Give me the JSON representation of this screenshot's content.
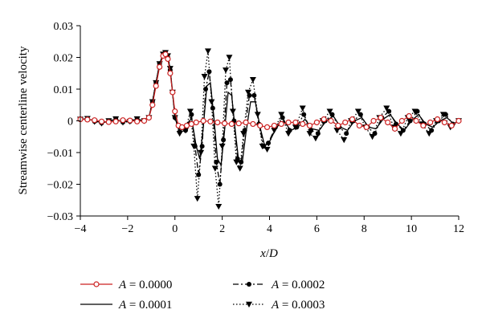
{
  "chart_data": {
    "type": "line",
    "xlabel": "x/D",
    "ylabel": "Streamwise centerline velocity",
    "xlim": [
      -4,
      12
    ],
    "ylim": [
      -0.03,
      0.03
    ],
    "x_ticks": [
      -4,
      -2,
      0,
      2,
      4,
      6,
      8,
      10,
      12
    ],
    "y_ticks": [
      0.03,
      0.02,
      0.01,
      0,
      -0.01,
      -0.02,
      -0.03
    ],
    "x_tick_labels": [
      "−4",
      "−2",
      "0",
      "2",
      "4",
      "6",
      "8",
      "10",
      "12"
    ],
    "y_tick_labels": [
      "0.03",
      "0.02",
      "0.01",
      "0",
      "−0.01",
      "−0.02",
      "−0.03"
    ],
    "grid": false,
    "legend_position": "bottom",
    "series": [
      {
        "name": "A = 0.0000",
        "label_var": "A",
        "label_value": " = 0.0000",
        "color": "#cc2222",
        "style": "solid",
        "marker": "open-circle",
        "points": [
          [
            -4,
            0.0005
          ],
          [
            -3.7,
            0.0004
          ],
          [
            -3.4,
            0.0002
          ],
          [
            -3.1,
            -0.0002
          ],
          [
            -2.8,
            -0.0004
          ],
          [
            -2.5,
            -0.0002
          ],
          [
            -2.2,
            0.0002
          ],
          [
            -1.9,
            0.0001
          ],
          [
            -1.6,
            -0.0002
          ],
          [
            -1.3,
            0.0
          ],
          [
            -1.1,
            0.001
          ],
          [
            -0.95,
            0.005
          ],
          [
            -0.8,
            0.011
          ],
          [
            -0.65,
            0.017
          ],
          [
            -0.5,
            0.0205
          ],
          [
            -0.4,
            0.021
          ],
          [
            -0.3,
            0.0195
          ],
          [
            -0.2,
            0.015
          ],
          [
            -0.1,
            0.009
          ],
          [
            0.0,
            0.003
          ],
          [
            0.15,
            -0.0015
          ],
          [
            0.3,
            -0.002
          ],
          [
            0.5,
            -0.0015
          ],
          [
            0.7,
            -0.001
          ],
          [
            0.9,
            -0.0005
          ],
          [
            1.2,
            0.0
          ],
          [
            1.5,
            -0.0002
          ],
          [
            1.8,
            -0.0005
          ],
          [
            2.1,
            -0.0008
          ],
          [
            2.4,
            -0.001
          ],
          [
            2.7,
            -0.0008
          ],
          [
            3.0,
            -0.0005
          ],
          [
            3.3,
            -0.001
          ],
          [
            3.6,
            -0.0015
          ],
          [
            3.9,
            -0.002
          ],
          [
            4.2,
            -0.0015
          ],
          [
            4.5,
            -0.001
          ],
          [
            4.8,
            -0.0005
          ],
          [
            5.1,
            -0.0005
          ],
          [
            5.4,
            -0.001
          ],
          [
            5.7,
            -0.0015
          ],
          [
            6.0,
            -0.0005
          ],
          [
            6.3,
            0.0005
          ],
          [
            6.6,
            0.0
          ],
          [
            6.9,
            -0.0015
          ],
          [
            7.2,
            -0.0005
          ],
          [
            7.5,
            0.0005
          ],
          [
            7.8,
            -0.0015
          ],
          [
            8.1,
            -0.002
          ],
          [
            8.4,
            0.0
          ],
          [
            8.7,
            0.001
          ],
          [
            9.0,
            -0.0005
          ],
          [
            9.3,
            -0.0025
          ],
          [
            9.6,
            0.0
          ],
          [
            9.9,
            0.0015
          ],
          [
            10.2,
            0.0
          ],
          [
            10.5,
            -0.0015
          ],
          [
            10.8,
            -0.0005
          ],
          [
            11.1,
            0.0005
          ],
          [
            11.4,
            -0.0005
          ],
          [
            11.7,
            -0.0015
          ],
          [
            12,
            0.0
          ]
        ]
      },
      {
        "name": "A = 0.0001",
        "label_var": "A",
        "label_value": " = 0.0001",
        "color": "#000000",
        "style": "solid",
        "marker": "none",
        "points": [
          [
            -4,
            0.0005
          ],
          [
            -3.7,
            0.0006
          ],
          [
            -3.4,
            0.0
          ],
          [
            -3.1,
            -0.0006
          ],
          [
            -2.8,
            -0.0002
          ],
          [
            -2.5,
            0.0004
          ],
          [
            -2.2,
            -0.0004
          ],
          [
            -1.9,
            0.0
          ],
          [
            -1.6,
            0.0005
          ],
          [
            -1.3,
            0.0
          ],
          [
            -1.1,
            0.001
          ],
          [
            -0.95,
            0.006
          ],
          [
            -0.8,
            0.012
          ],
          [
            -0.65,
            0.018
          ],
          [
            -0.5,
            0.021
          ],
          [
            -0.4,
            0.0215
          ],
          [
            -0.3,
            0.0205
          ],
          [
            -0.2,
            0.016
          ],
          [
            -0.1,
            0.009
          ],
          [
            0.0,
            0.001
          ],
          [
            0.2,
            -0.003
          ],
          [
            0.45,
            -0.0025
          ],
          [
            0.7,
            0.001
          ],
          [
            0.9,
            -0.008
          ],
          [
            1.05,
            -0.012
          ],
          [
            1.2,
            -0.002
          ],
          [
            1.35,
            0.011
          ],
          [
            1.5,
            0.012
          ],
          [
            1.65,
            0.001
          ],
          [
            1.8,
            -0.012
          ],
          [
            1.95,
            -0.014
          ],
          [
            2.1,
            -0.003
          ],
          [
            2.25,
            0.009
          ],
          [
            2.4,
            0.008
          ],
          [
            2.55,
            -0.003
          ],
          [
            2.7,
            -0.013
          ],
          [
            2.85,
            -0.013
          ],
          [
            3.0,
            -0.004
          ],
          [
            3.2,
            0.006
          ],
          [
            3.4,
            0.006
          ],
          [
            3.6,
            -0.002
          ],
          [
            3.8,
            -0.008
          ],
          [
            4.0,
            -0.0065
          ],
          [
            4.3,
            -0.002
          ],
          [
            4.6,
            0.0
          ],
          [
            4.9,
            -0.003
          ],
          [
            5.2,
            -0.002
          ],
          [
            5.5,
            0.0005
          ],
          [
            5.8,
            -0.0025
          ],
          [
            6.1,
            -0.003
          ],
          [
            6.4,
            0.0
          ],
          [
            6.7,
            0.0015
          ],
          [
            7.0,
            -0.002
          ],
          [
            7.3,
            -0.003
          ],
          [
            7.6,
            0.0
          ],
          [
            7.9,
            0.001
          ],
          [
            8.2,
            -0.002
          ],
          [
            8.5,
            -0.0025
          ],
          [
            8.8,
            0.0005
          ],
          [
            9.1,
            0.002
          ],
          [
            9.4,
            -0.001
          ],
          [
            9.7,
            -0.003
          ],
          [
            10.0,
            0.0
          ],
          [
            10.3,
            0.002
          ],
          [
            10.6,
            -0.001
          ],
          [
            10.9,
            -0.002
          ],
          [
            11.2,
            0.0
          ],
          [
            11.5,
            0.001
          ],
          [
            11.8,
            -0.001
          ],
          [
            12,
            0.0
          ]
        ]
      },
      {
        "name": "A = 0.0002",
        "label_var": "A",
        "label_value": " = 0.0002",
        "color": "#000000",
        "style": "dashdot",
        "marker": "filled-circle",
        "points": [
          [
            -4,
            0.0005
          ],
          [
            -3.7,
            0.0006
          ],
          [
            -3.4,
            -0.0002
          ],
          [
            -3.1,
            -0.0007
          ],
          [
            -2.8,
            0.0
          ],
          [
            -2.5,
            0.0005
          ],
          [
            -2.2,
            -0.0004
          ],
          [
            -1.9,
            -0.0002
          ],
          [
            -1.6,
            0.0005
          ],
          [
            -1.3,
            0.0
          ],
          [
            -1.1,
            0.001
          ],
          [
            -0.95,
            0.006
          ],
          [
            -0.8,
            0.012
          ],
          [
            -0.65,
            0.018
          ],
          [
            -0.5,
            0.0205
          ],
          [
            -0.4,
            0.021
          ],
          [
            -0.3,
            0.02
          ],
          [
            -0.2,
            0.016
          ],
          [
            -0.1,
            0.009
          ],
          [
            0.0,
            0.001
          ],
          [
            0.2,
            -0.0035
          ],
          [
            0.45,
            -0.003
          ],
          [
            0.7,
            0.002
          ],
          [
            0.85,
            -0.008
          ],
          [
            1.0,
            -0.017
          ],
          [
            1.15,
            -0.008
          ],
          [
            1.3,
            0.01
          ],
          [
            1.45,
            0.0155
          ],
          [
            1.6,
            0.004
          ],
          [
            1.75,
            -0.013
          ],
          [
            1.9,
            -0.02
          ],
          [
            2.05,
            -0.006
          ],
          [
            2.2,
            0.012
          ],
          [
            2.35,
            0.013
          ],
          [
            2.5,
            0.0
          ],
          [
            2.65,
            -0.012
          ],
          [
            2.8,
            -0.013
          ],
          [
            2.95,
            -0.003
          ],
          [
            3.15,
            0.008
          ],
          [
            3.35,
            0.008
          ],
          [
            3.55,
            -0.001
          ],
          [
            3.75,
            -0.008
          ],
          [
            3.95,
            -0.007
          ],
          [
            4.25,
            -0.002
          ],
          [
            4.55,
            0.001
          ],
          [
            4.85,
            -0.003
          ],
          [
            5.15,
            -0.002
          ],
          [
            5.45,
            0.002
          ],
          [
            5.75,
            -0.003
          ],
          [
            6.05,
            -0.004
          ],
          [
            6.35,
            0.0
          ],
          [
            6.65,
            0.002
          ],
          [
            6.95,
            -0.002
          ],
          [
            7.25,
            -0.004
          ],
          [
            7.55,
            0.0
          ],
          [
            7.85,
            0.002
          ],
          [
            8.15,
            -0.002
          ],
          [
            8.45,
            -0.004
          ],
          [
            8.75,
            0.001
          ],
          [
            9.05,
            0.003
          ],
          [
            9.35,
            -0.001
          ],
          [
            9.65,
            -0.003
          ],
          [
            9.95,
            0.0
          ],
          [
            10.25,
            0.003
          ],
          [
            10.55,
            -0.001
          ],
          [
            10.85,
            -0.003
          ],
          [
            11.15,
            0.0
          ],
          [
            11.45,
            0.002
          ],
          [
            11.75,
            -0.001
          ],
          [
            12,
            0.0
          ]
        ]
      },
      {
        "name": "A = 0.0003",
        "label_var": "A",
        "label_value": " = 0.0003",
        "color": "#000000",
        "style": "dotted",
        "marker": "filled-triangle-down",
        "points": [
          [
            -4,
            0.0005
          ],
          [
            -3.7,
            0.0007
          ],
          [
            -3.4,
            -0.0003
          ],
          [
            -3.1,
            -0.0008
          ],
          [
            -2.8,
            0.0
          ],
          [
            -2.5,
            0.0006
          ],
          [
            -2.2,
            -0.0005
          ],
          [
            -1.9,
            -0.0002
          ],
          [
            -1.6,
            0.0006
          ],
          [
            -1.3,
            0.0
          ],
          [
            -1.1,
            0.001
          ],
          [
            -0.95,
            0.006
          ],
          [
            -0.8,
            0.012
          ],
          [
            -0.65,
            0.018
          ],
          [
            -0.5,
            0.021
          ],
          [
            -0.4,
            0.0215
          ],
          [
            -0.3,
            0.0205
          ],
          [
            -0.2,
            0.0165
          ],
          [
            -0.1,
            0.009
          ],
          [
            0.0,
            0.001
          ],
          [
            0.2,
            -0.004
          ],
          [
            0.45,
            -0.003
          ],
          [
            0.65,
            0.003
          ],
          [
            0.8,
            -0.008
          ],
          [
            0.95,
            -0.0245
          ],
          [
            1.1,
            -0.01
          ],
          [
            1.25,
            0.014
          ],
          [
            1.4,
            0.022
          ],
          [
            1.55,
            0.006
          ],
          [
            1.7,
            -0.015
          ],
          [
            1.85,
            -0.027
          ],
          [
            2.0,
            -0.008
          ],
          [
            2.15,
            0.016
          ],
          [
            2.3,
            0.02
          ],
          [
            2.45,
            0.003
          ],
          [
            2.6,
            -0.013
          ],
          [
            2.75,
            -0.015
          ],
          [
            2.9,
            -0.004
          ],
          [
            3.1,
            0.009
          ],
          [
            3.3,
            0.013
          ],
          [
            3.5,
            0.002
          ],
          [
            3.7,
            -0.008
          ],
          [
            3.9,
            -0.009
          ],
          [
            4.2,
            -0.003
          ],
          [
            4.5,
            0.002
          ],
          [
            4.8,
            -0.004
          ],
          [
            5.1,
            -0.002
          ],
          [
            5.4,
            0.004
          ],
          [
            5.7,
            -0.004
          ],
          [
            5.95,
            -0.0055
          ],
          [
            6.25,
            0.0
          ],
          [
            6.55,
            0.003
          ],
          [
            6.85,
            -0.003
          ],
          [
            7.15,
            -0.006
          ],
          [
            7.45,
            0.0
          ],
          [
            7.75,
            0.003
          ],
          [
            8.05,
            -0.002
          ],
          [
            8.35,
            -0.005
          ],
          [
            8.65,
            0.001
          ],
          [
            8.95,
            0.004
          ],
          [
            9.25,
            -0.002
          ],
          [
            9.55,
            -0.004
          ],
          [
            9.85,
            0.001
          ],
          [
            10.15,
            0.003
          ],
          [
            10.45,
            -0.001
          ],
          [
            10.75,
            -0.004
          ],
          [
            11.05,
            0.0
          ],
          [
            11.35,
            0.002
          ],
          [
            11.65,
            -0.002
          ],
          [
            12,
            0.0
          ]
        ]
      }
    ]
  }
}
